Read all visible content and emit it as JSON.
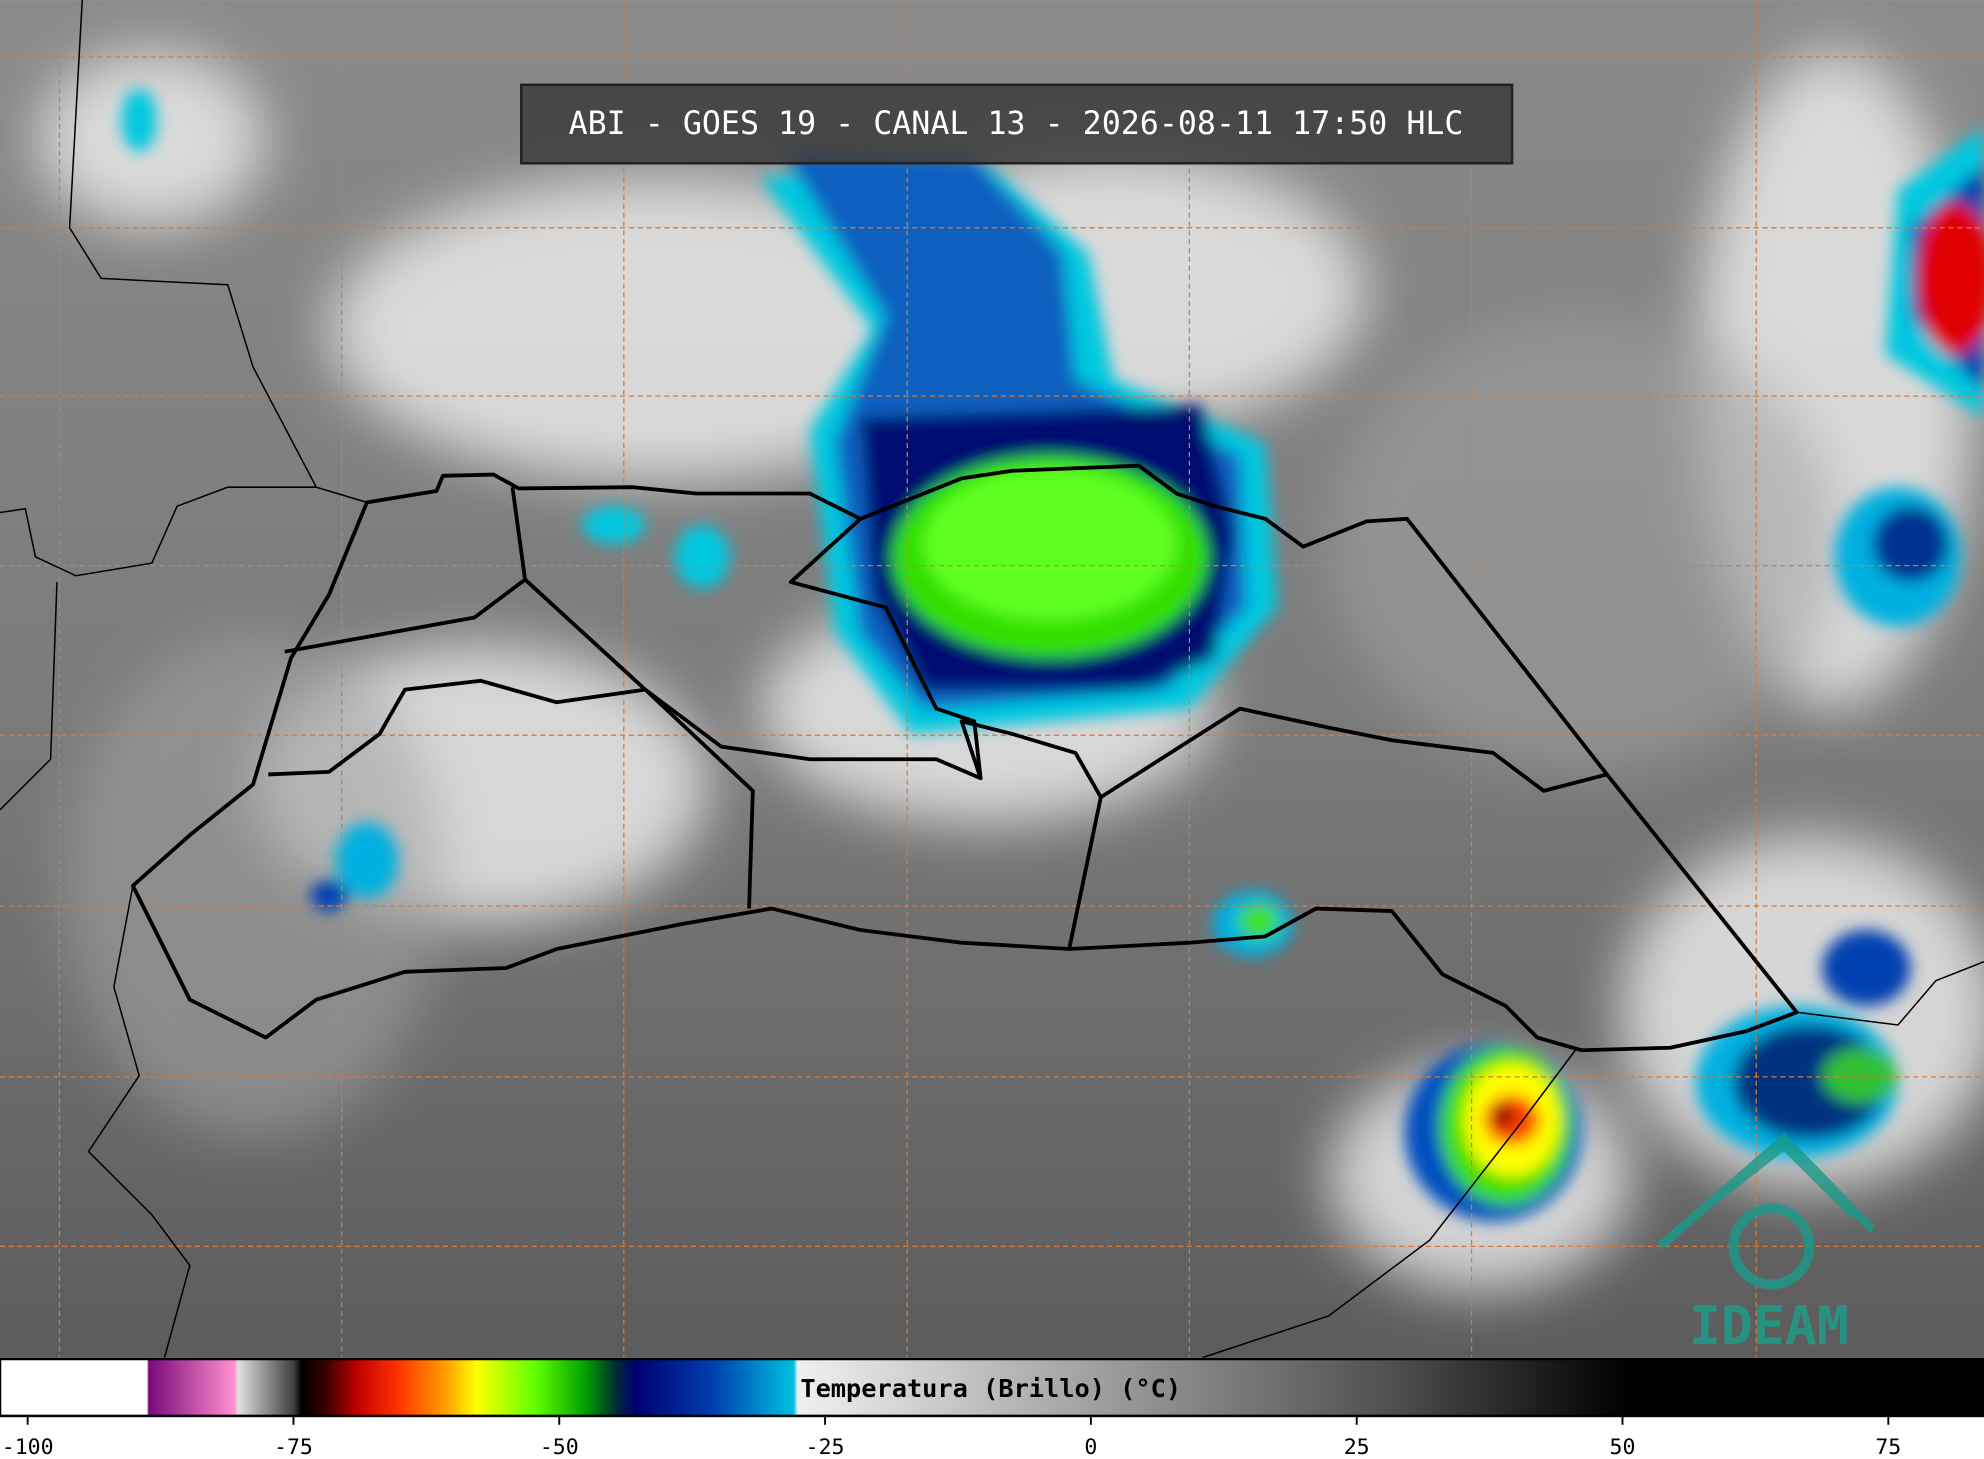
{
  "title": "ABI - GOES 19 - CANAL 13 - 2026-08-11 17:50 HLC",
  "colorbar": {
    "label": "Temperatura (Brillo) (°C)",
    "range": [
      -102.6,
      84.0
    ],
    "ticks": [
      -100,
      -75,
      -50,
      -25,
      0,
      25,
      50,
      75
    ]
  },
  "logo": "IDEAM"
}
